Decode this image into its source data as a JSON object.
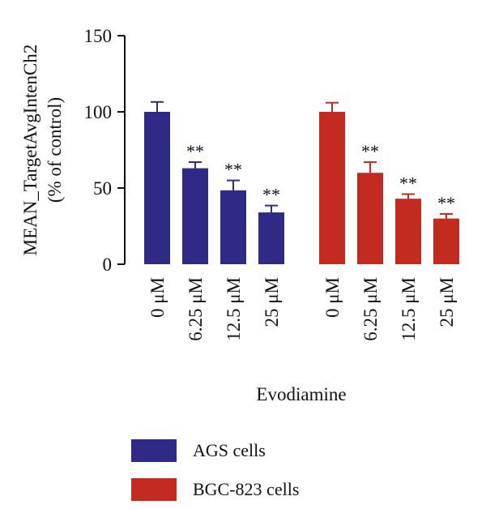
{
  "chart_data": {
    "type": "bar",
    "ylabel_line1": "MEAN_TargetAvgIntenCh2",
    "ylabel_line2": "(% of control)",
    "xlabel": "Evodiamine",
    "ylim": [
      0,
      150
    ],
    "yticks": [
      0,
      50,
      100,
      150
    ],
    "categories": [
      "0 μM",
      "6.25 μM",
      "12.5 μM",
      "25 μM"
    ],
    "series": [
      {
        "name": "AGS cells",
        "color": "#2e2a86",
        "values": [
          100,
          63,
          48.5,
          34
        ],
        "errors": [
          6.5,
          4,
          6.5,
          4.5
        ],
        "annotations": [
          "",
          "**",
          "**",
          "**"
        ]
      },
      {
        "name": "BGC-823 cells",
        "color": "#c42b20",
        "values": [
          100,
          60,
          43,
          30
        ],
        "errors": [
          6,
          7,
          3,
          3
        ],
        "annotations": [
          "",
          "**",
          "**",
          "**"
        ]
      }
    ]
  }
}
